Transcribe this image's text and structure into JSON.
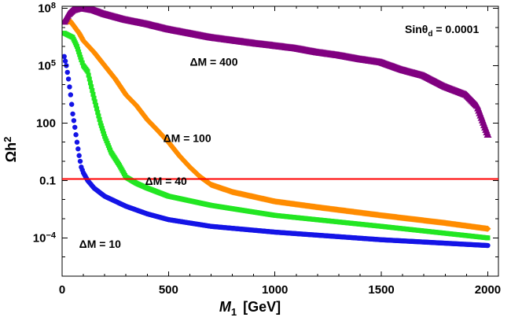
{
  "chart_data": {
    "type": "scatter",
    "title": "",
    "xlabel": "M",
    "xlabel_subscript": "1",
    "xlabel_unit": "[GeV]",
    "ylabel": "Ωh",
    "ylabel_superscript": "2",
    "xlim": [
      0,
      2050
    ],
    "ylim_log10": [
      -6,
      8.1
    ],
    "x_ticks": [
      0,
      500,
      1000,
      1500,
      2000
    ],
    "y_ticks": [
      {
        "value": 100000000.0,
        "label": "10",
        "exp": "8"
      },
      {
        "value": 100000.0,
        "label": "10",
        "exp": "5"
      },
      {
        "value": 100,
        "label": "100",
        "exp": ""
      },
      {
        "value": 0.1,
        "label": "0.1",
        "exp": ""
      },
      {
        "value": 0.0001,
        "label": "10",
        "exp": "−4"
      }
    ],
    "reference_line": {
      "value": 0.12,
      "color": "#ff0000"
    },
    "annotation": {
      "text": "Sinθ",
      "subscript": "d",
      "value": " = 0.0001"
    },
    "series": [
      {
        "name": "ΔM=10",
        "label": "ΔM = 10",
        "color": "#1414e6",
        "marker": "circle",
        "points": [
          [
            10,
            300000.0
          ],
          [
            20,
            100000.0
          ],
          [
            30,
            20000.0
          ],
          [
            40,
            3000
          ],
          [
            50,
            300
          ],
          [
            60,
            60
          ],
          [
            70,
            10
          ],
          [
            80,
            2
          ],
          [
            90,
            0.5
          ],
          [
            100,
            0.25
          ],
          [
            120,
            0.1
          ],
          [
            150,
            0.04
          ],
          [
            200,
            0.015
          ],
          [
            300,
            0.0045
          ],
          [
            400,
            0.0018
          ],
          [
            500,
            0.0009
          ],
          [
            700,
            0.0004
          ],
          [
            1000,
            0.0002
          ],
          [
            1500,
            8e-05
          ],
          [
            2000,
            4e-05
          ]
        ]
      },
      {
        "name": "ΔM=40",
        "label": "ΔM = 40",
        "color": "#22e622",
        "marker": "square",
        "points": [
          [
            10,
            5000000.0
          ],
          [
            50,
            3000000.0
          ],
          [
            70,
            1000000.0
          ],
          [
            90,
            200000.0
          ],
          [
            100,
            100000.0
          ],
          [
            120,
            50000.0
          ],
          [
            150,
            2000
          ],
          [
            180,
            100
          ],
          [
            200,
            20
          ],
          [
            230,
            3
          ],
          [
            270,
            0.6
          ],
          [
            300,
            0.15
          ],
          [
            350,
            0.07
          ],
          [
            400,
            0.04
          ],
          [
            500,
            0.015
          ],
          [
            700,
            0.005
          ],
          [
            1000,
            0.0015
          ],
          [
            1500,
            0.0004
          ],
          [
            2000,
            0.0001
          ]
        ]
      },
      {
        "name": "ΔM=100",
        "label": "ΔM = 100",
        "color": "#ff8c00",
        "marker": "diamond",
        "points": [
          [
            10,
            20000000.0
          ],
          [
            40,
            20000000.0
          ],
          [
            60,
            10000000.0
          ],
          [
            80,
            5000000.0
          ],
          [
            100,
            2000000.0
          ],
          [
            150,
            500000.0
          ],
          [
            200,
            100000.0
          ],
          [
            250,
            20000.0
          ],
          [
            300,
            3000
          ],
          [
            350,
            800
          ],
          [
            400,
            150
          ],
          [
            450,
            40
          ],
          [
            500,
            10
          ],
          [
            550,
            2
          ],
          [
            600,
            0.5
          ],
          [
            650,
            0.15
          ],
          [
            700,
            0.06
          ],
          [
            800,
            0.025
          ],
          [
            1000,
            0.008
          ],
          [
            1200,
            0.004
          ],
          [
            1500,
            0.0015
          ],
          [
            1800,
            0.0006
          ],
          [
            2000,
            0.0003
          ]
        ]
      },
      {
        "name": "ΔM=400",
        "label": "ΔM = 400",
        "color": "#800080",
        "marker": "triangle",
        "points": [
          [
            10,
            20000000.0
          ],
          [
            30,
            50000000.0
          ],
          [
            50,
            80000000.0
          ],
          [
            80,
            100000000.0
          ],
          [
            100,
            100000000.0
          ],
          [
            150,
            80000000.0
          ],
          [
            200,
            50000000.0
          ],
          [
            300,
            25000000.0
          ],
          [
            400,
            15000000.0
          ],
          [
            500,
            8000000.0
          ],
          [
            700,
            3000000.0
          ],
          [
            900,
            1500000.0
          ],
          [
            1000,
            1100000.0
          ],
          [
            1100,
            800000.0
          ],
          [
            1200,
            500000.0
          ],
          [
            1300,
            350000.0
          ],
          [
            1400,
            220000.0
          ],
          [
            1500,
            150000.0
          ],
          [
            1600,
            60000.0
          ],
          [
            1700,
            30000.0
          ],
          [
            1800,
            8000
          ],
          [
            1900,
            3000
          ],
          [
            1950,
            800
          ],
          [
            2000,
            25
          ]
        ]
      }
    ]
  }
}
